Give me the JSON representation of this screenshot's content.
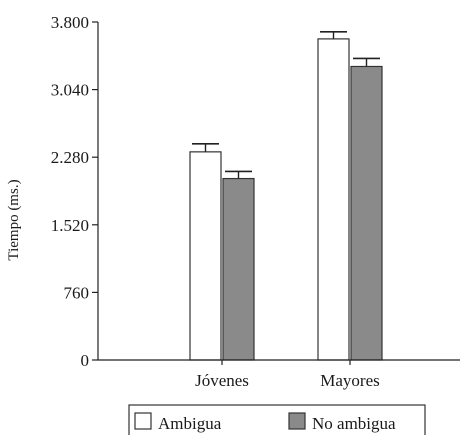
{
  "chart_data": {
    "type": "bar",
    "title": "",
    "xlabel": "",
    "ylabel": "Tiempo (ms.)",
    "ylim": [
      0,
      3800
    ],
    "yticks": [
      0,
      760,
      1520,
      2280,
      3040,
      3800
    ],
    "ytick_labels": [
      "0",
      "760",
      "1.520",
      "2.280",
      "3.040",
      "3.800"
    ],
    "categories": [
      "Jóvenes",
      "Mayores"
    ],
    "series": [
      {
        "name": "Ambigua",
        "values": [
          2340,
          3610
        ],
        "errors": [
          90,
          80
        ],
        "color": "#ffffff"
      },
      {
        "name": "No ambigua",
        "values": [
          2040,
          3300
        ],
        "errors": [
          80,
          90
        ],
        "color": "#8a8a8a"
      }
    ],
    "grid": false,
    "legend": "bottom"
  }
}
